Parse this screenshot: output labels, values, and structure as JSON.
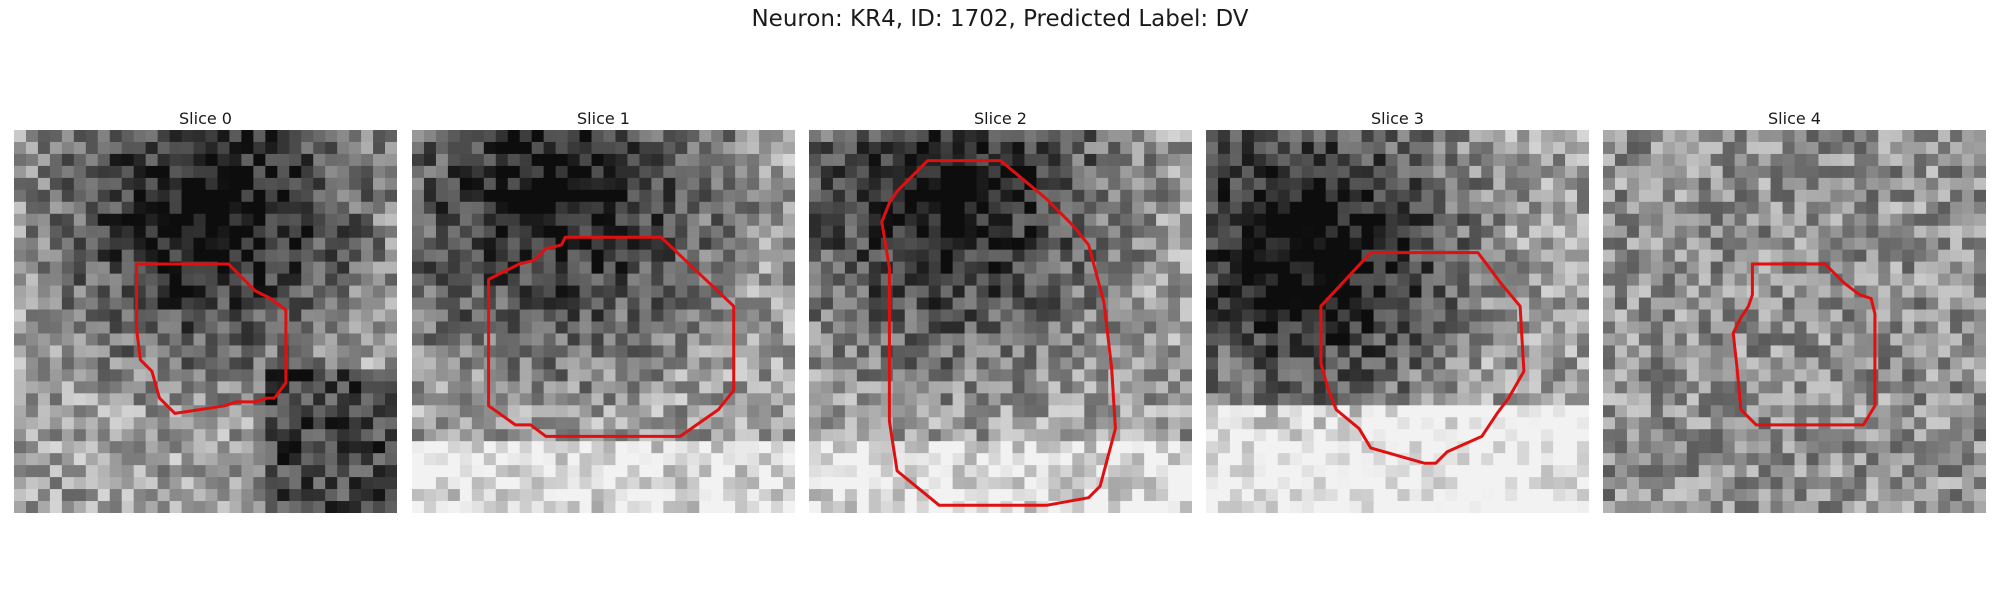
{
  "figure": {
    "title": "Neuron: KR4, ID: 1702, Predicted Label: DV"
  },
  "slices": [
    {
      "label": "Slice 0",
      "seed": 11,
      "dark": "upper-center",
      "contour": [
        [
          0.32,
          0.35
        ],
        [
          0.56,
          0.35
        ],
        [
          0.63,
          0.42
        ],
        [
          0.67,
          0.44
        ],
        [
          0.71,
          0.47
        ],
        [
          0.71,
          0.66
        ],
        [
          0.68,
          0.7
        ],
        [
          0.66,
          0.7
        ],
        [
          0.63,
          0.71
        ],
        [
          0.58,
          0.71
        ],
        [
          0.55,
          0.72
        ],
        [
          0.42,
          0.74
        ],
        [
          0.38,
          0.7
        ],
        [
          0.36,
          0.63
        ],
        [
          0.33,
          0.6
        ],
        [
          0.32,
          0.52
        ],
        [
          0.32,
          0.4
        ]
      ]
    },
    {
      "label": "Slice 1",
      "seed": 23,
      "dark": "upper-left",
      "contour": [
        [
          0.28,
          0.35
        ],
        [
          0.32,
          0.34
        ],
        [
          0.35,
          0.31
        ],
        [
          0.39,
          0.3
        ],
        [
          0.4,
          0.28
        ],
        [
          0.65,
          0.28
        ],
        [
          0.84,
          0.46
        ],
        [
          0.84,
          0.68
        ],
        [
          0.8,
          0.73
        ],
        [
          0.7,
          0.8
        ],
        [
          0.35,
          0.8
        ],
        [
          0.31,
          0.77
        ],
        [
          0.27,
          0.77
        ],
        [
          0.2,
          0.72
        ],
        [
          0.2,
          0.39
        ]
      ]
    },
    {
      "label": "Slice 2",
      "seed": 37,
      "dark": "upper-left",
      "contour": [
        [
          0.31,
          0.08
        ],
        [
          0.5,
          0.08
        ],
        [
          0.62,
          0.18
        ],
        [
          0.69,
          0.25
        ],
        [
          0.73,
          0.3
        ],
        [
          0.77,
          0.45
        ],
        [
          0.79,
          0.62
        ],
        [
          0.8,
          0.78
        ],
        [
          0.76,
          0.93
        ],
        [
          0.73,
          0.96
        ],
        [
          0.62,
          0.98
        ],
        [
          0.54,
          0.98
        ],
        [
          0.34,
          0.98
        ],
        [
          0.23,
          0.89
        ],
        [
          0.21,
          0.76
        ],
        [
          0.21,
          0.36
        ],
        [
          0.19,
          0.24
        ],
        [
          0.21,
          0.19
        ],
        [
          0.23,
          0.16
        ],
        [
          0.26,
          0.13
        ]
      ]
    },
    {
      "label": "Slice 3",
      "seed": 51,
      "dark": "left",
      "contour": [
        [
          0.43,
          0.32
        ],
        [
          0.71,
          0.32
        ],
        [
          0.77,
          0.4
        ],
        [
          0.82,
          0.46
        ],
        [
          0.83,
          0.63
        ],
        [
          0.79,
          0.7
        ],
        [
          0.76,
          0.74
        ],
        [
          0.72,
          0.8
        ],
        [
          0.63,
          0.84
        ],
        [
          0.6,
          0.87
        ],
        [
          0.57,
          0.87
        ],
        [
          0.43,
          0.83
        ],
        [
          0.4,
          0.78
        ],
        [
          0.34,
          0.73
        ],
        [
          0.32,
          0.68
        ],
        [
          0.3,
          0.61
        ],
        [
          0.3,
          0.46
        ]
      ]
    },
    {
      "label": "Slice 4",
      "seed": 67,
      "dark": "scattered",
      "contour": [
        [
          0.39,
          0.35
        ],
        [
          0.58,
          0.35
        ],
        [
          0.63,
          0.4
        ],
        [
          0.67,
          0.43
        ],
        [
          0.7,
          0.44
        ],
        [
          0.71,
          0.48
        ],
        [
          0.71,
          0.72
        ],
        [
          0.68,
          0.77
        ],
        [
          0.4,
          0.77
        ],
        [
          0.36,
          0.73
        ],
        [
          0.35,
          0.62
        ],
        [
          0.34,
          0.53
        ],
        [
          0.36,
          0.49
        ],
        [
          0.38,
          0.46
        ],
        [
          0.39,
          0.43
        ]
      ]
    }
  ]
}
